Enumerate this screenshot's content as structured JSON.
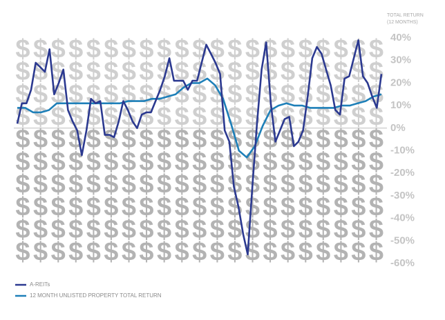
{
  "chart_data": {
    "type": "line",
    "ylabel_lines": [
      "TOTAL RETURN",
      "(12 MONTHS)"
    ],
    "background_symbol": "$",
    "ylim": [
      -60,
      40
    ],
    "yticks": [
      {
        "value": 40,
        "label": "40%"
      },
      {
        "value": 30,
        "label": "30%"
      },
      {
        "value": 20,
        "label": "20%"
      },
      {
        "value": 10,
        "label": "10%"
      },
      {
        "value": 0,
        "label": "0%"
      },
      {
        "value": -10,
        "label": "-10%"
      },
      {
        "value": -20,
        "label": "-20%"
      },
      {
        "value": -30,
        "label": "-30%"
      },
      {
        "value": -40,
        "label": "-40%"
      },
      {
        "value": -50,
        "label": "-50%"
      },
      {
        "value": -60,
        "label": "-60%"
      }
    ],
    "zero_line": true,
    "legend": "bottom-left",
    "series": [
      {
        "name": "A-REITs",
        "color": "#2b3990",
        "values": [
          2,
          11,
          11,
          17,
          29,
          27,
          25,
          35,
          15,
          20,
          26,
          8,
          3,
          -1,
          -12,
          -1,
          13,
          11,
          12,
          -3,
          -3,
          -4,
          3,
          12,
          8,
          3,
          0,
          6,
          7,
          7,
          12,
          17,
          23,
          31,
          21,
          21,
          21,
          17,
          21,
          21,
          29,
          37,
          33,
          29,
          24,
          -1,
          -6,
          -26,
          -35,
          -47,
          -56,
          -26,
          2,
          26,
          38,
          11,
          -6,
          -1,
          4,
          5,
          -8,
          -6,
          -1,
          14,
          31,
          36,
          33,
          26,
          19,
          8,
          6,
          22,
          23,
          31,
          39,
          23,
          20,
          14,
          9,
          24
        ]
      },
      {
        "name": "12 MONTH UNLISTED PROPERTY TOTAL RETURN",
        "color": "#1d7fb8",
        "values": [
          9,
          9,
          7,
          7,
          8,
          11,
          11,
          11,
          11,
          11,
          11,
          11,
          11,
          11,
          12,
          12,
          12,
          13,
          13,
          14,
          15,
          18,
          20,
          20,
          22,
          19,
          13,
          2,
          -10,
          -13,
          -8,
          1,
          8,
          10,
          11,
          10,
          10,
          9,
          9,
          9,
          9,
          10,
          10,
          11,
          12,
          14,
          15
        ]
      }
    ]
  }
}
